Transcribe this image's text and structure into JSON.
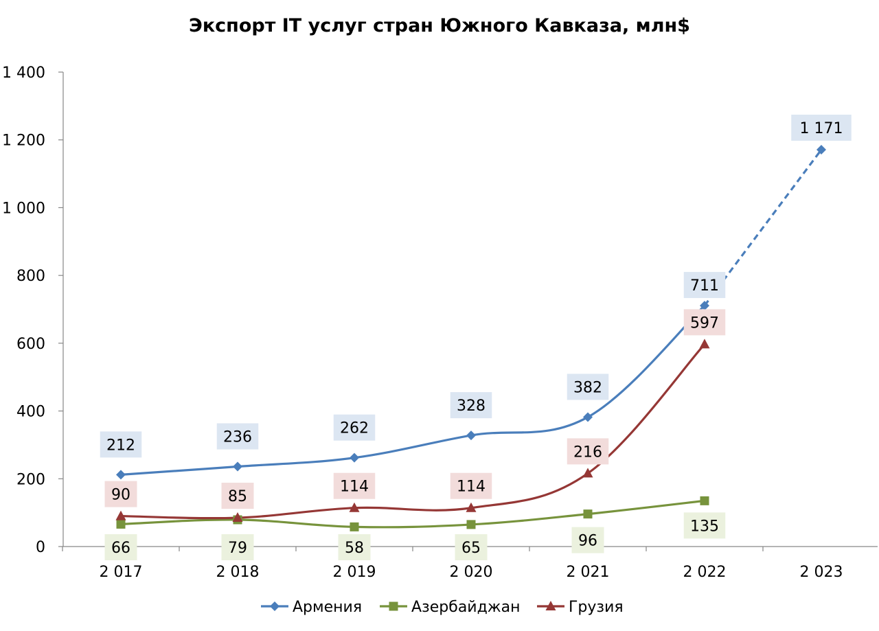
{
  "chart_data": {
    "type": "line",
    "title": "Экспорт IT услуг стран Южного Кавказа, млн$",
    "categories": [
      "2 017",
      "2 018",
      "2 019",
      "2 020",
      "2 021",
      "2 022",
      "2 023"
    ],
    "y_ticks": [
      "0",
      "200",
      "400",
      "600",
      "800",
      "1 000",
      "1 200",
      "1 400"
    ],
    "ylim": [
      0,
      1400
    ],
    "grid": false,
    "legend_position": "bottom",
    "series": [
      {
        "name": "Армения",
        "color": "#4a7ebb",
        "label_bg": "#dce6f2",
        "marker": "diamond",
        "values": [
          212,
          236,
          262,
          328,
          382,
          711,
          1171
        ],
        "labels": [
          "212",
          "236",
          "262",
          "328",
          "382",
          "711",
          "1 171"
        ],
        "dashed_from_index": 5
      },
      {
        "name": "Азербайджан",
        "color": "#77933c",
        "label_bg": "#ebf1de",
        "marker": "square",
        "values": [
          66,
          79,
          58,
          65,
          96,
          135,
          null
        ],
        "labels": [
          "66",
          "79",
          "58",
          "65",
          "96",
          "135",
          ""
        ]
      },
      {
        "name": "Грузия",
        "color": "#953735",
        "label_bg": "#f2dcdb",
        "marker": "triangle",
        "values": [
          90,
          85,
          114,
          114,
          216,
          597,
          null
        ],
        "labels": [
          "90",
          "85",
          "114",
          "114",
          "216",
          "597",
          ""
        ]
      }
    ]
  }
}
